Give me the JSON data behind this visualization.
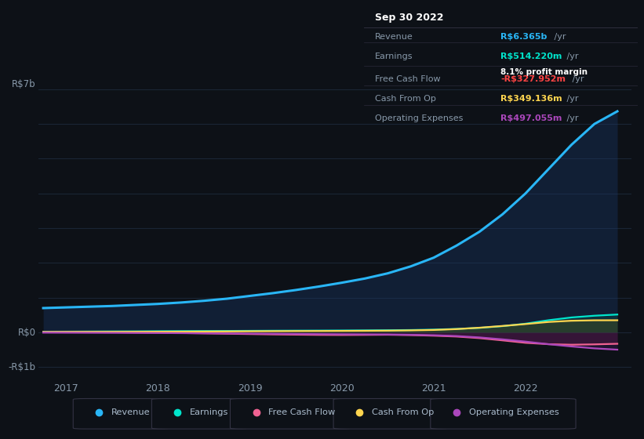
{
  "bg_color": "#0d1117",
  "plot_bg_color": "#0d1117",
  "grid_color": "#1a2535",
  "title_box": {
    "date": "Sep 30 2022",
    "rows": [
      {
        "label": "Revenue",
        "value": "R$6.365b",
        "value_color": "#29b6f6",
        "suffix": " /yr",
        "extra": null
      },
      {
        "label": "Earnings",
        "value": "R$514.220m",
        "value_color": "#00e5cc",
        "suffix": " /yr",
        "extra": "8.1% profit margin"
      },
      {
        "label": "Free Cash Flow",
        "value": "-R$327.952m",
        "value_color": "#ff4444",
        "suffix": " /yr",
        "extra": null
      },
      {
        "label": "Cash From Op",
        "value": "R$349.136m",
        "value_color": "#ffd54f",
        "suffix": " /yr",
        "extra": null
      },
      {
        "label": "Operating Expenses",
        "value": "R$497.055m",
        "value_color": "#ab47bc",
        "suffix": " /yr",
        "extra": null
      }
    ]
  },
  "ylim": [
    -1300000000.0,
    7800000000.0
  ],
  "x_ticks": [
    2017,
    2018,
    2019,
    2020,
    2021,
    2022
  ],
  "legend": [
    {
      "label": "Revenue",
      "color": "#29b6f6"
    },
    {
      "label": "Earnings",
      "color": "#00e5cc"
    },
    {
      "label": "Free Cash Flow",
      "color": "#f06292"
    },
    {
      "label": "Cash From Op",
      "color": "#ffd54f"
    },
    {
      "label": "Operating Expenses",
      "color": "#ab47bc"
    }
  ],
  "series": {
    "x": [
      2016.75,
      2017.0,
      2017.25,
      2017.5,
      2017.75,
      2018.0,
      2018.25,
      2018.5,
      2018.75,
      2019.0,
      2019.25,
      2019.5,
      2019.75,
      2020.0,
      2020.25,
      2020.5,
      2020.75,
      2021.0,
      2021.25,
      2021.5,
      2021.75,
      2022.0,
      2022.25,
      2022.5,
      2022.75,
      2023.0
    ],
    "revenue": [
      700000000.0,
      720000000.0,
      740000000.0,
      760000000.0,
      790000000.0,
      820000000.0,
      860000000.0,
      910000000.0,
      970000000.0,
      1050000000.0,
      1130000000.0,
      1220000000.0,
      1320000000.0,
      1430000000.0,
      1550000000.0,
      1700000000.0,
      1900000000.0,
      2150000000.0,
      2500000000.0,
      2900000000.0,
      3400000000.0,
      4000000000.0,
      4700000000.0,
      5400000000.0,
      6000000000.0,
      6365000000.0
    ],
    "earnings": [
      20000000.0,
      22000000.0,
      25000000.0,
      28000000.0,
      30000000.0,
      35000000.0,
      38000000.0,
      40000000.0,
      42000000.0,
      45000000.0,
      48000000.0,
      50000000.0,
      52000000.0,
      55000000.0,
      58000000.0,
      62000000.0,
      68000000.0,
      80000000.0,
      100000000.0,
      130000000.0,
      180000000.0,
      250000000.0,
      350000000.0,
      430000000.0,
      480000000.0,
      514000000.0
    ],
    "free_cash_flow": [
      8000000.0,
      10000000.0,
      8000000.0,
      4000000.0,
      -4000000.0,
      -10000000.0,
      -18000000.0,
      -28000000.0,
      -38000000.0,
      -48000000.0,
      -58000000.0,
      -65000000.0,
      -72000000.0,
      -75000000.0,
      -72000000.0,
      -68000000.0,
      -78000000.0,
      -95000000.0,
      -120000000.0,
      -165000000.0,
      -230000000.0,
      -300000000.0,
      -340000000.0,
      -355000000.0,
      -345000000.0,
      -328000000.0
    ],
    "cash_from_op": [
      10000000.0,
      12000000.0,
      14000000.0,
      16000000.0,
      18000000.0,
      20000000.0,
      22000000.0,
      25000000.0,
      28000000.0,
      32000000.0,
      35000000.0,
      38000000.0,
      40000000.0,
      43000000.0,
      46000000.0,
      50000000.0,
      58000000.0,
      70000000.0,
      95000000.0,
      135000000.0,
      185000000.0,
      240000000.0,
      300000000.0,
      335000000.0,
      348000000.0,
      349000000.0
    ],
    "op_expenses": [
      -8000000.0,
      -10000000.0,
      -12000000.0,
      -14000000.0,
      -16000000.0,
      -18000000.0,
      -22000000.0,
      -26000000.0,
      -30000000.0,
      -35000000.0,
      -40000000.0,
      -45000000.0,
      -50000000.0,
      -55000000.0,
      -58000000.0,
      -62000000.0,
      -70000000.0,
      -82000000.0,
      -105000000.0,
      -145000000.0,
      -200000000.0,
      -265000000.0,
      -340000000.0,
      -405000000.0,
      -460000000.0,
      -497000000.0
    ]
  }
}
